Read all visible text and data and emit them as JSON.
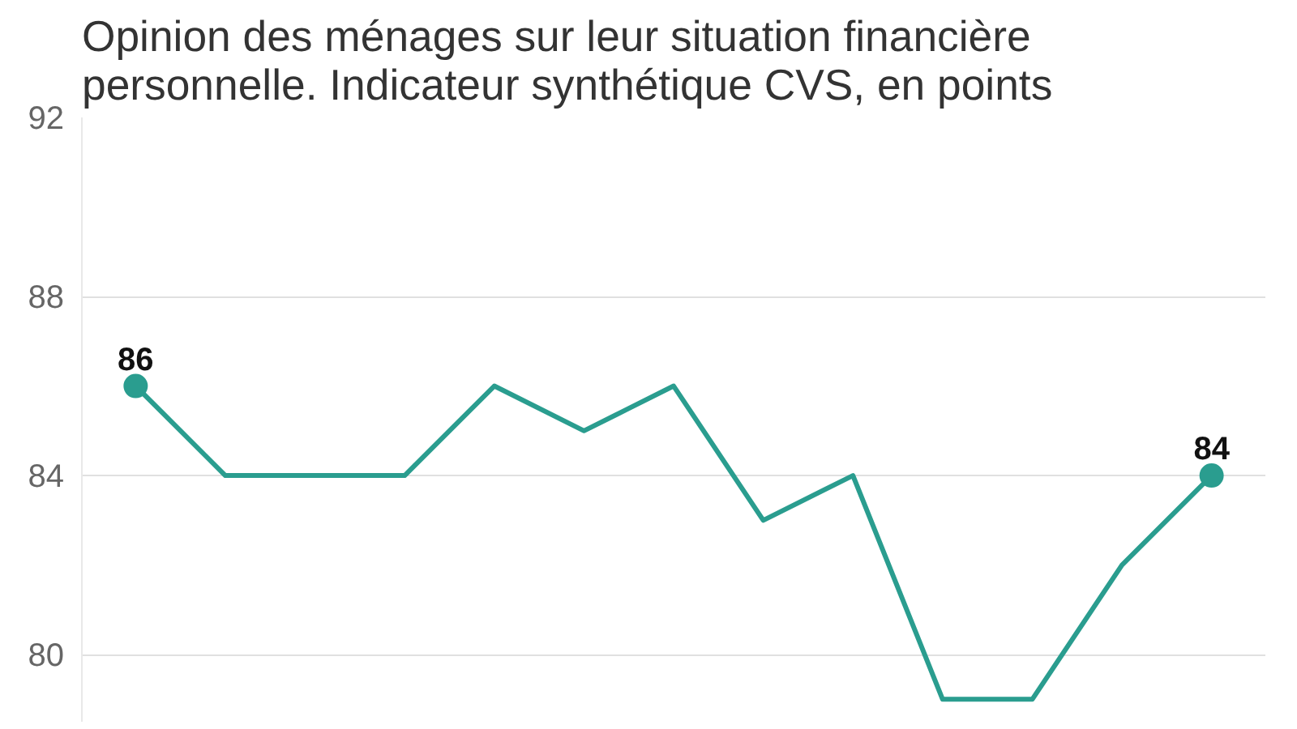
{
  "chart_data": {
    "type": "line",
    "title": "Opinion des ménages sur leur situation financière personnelle. Indicateur synthétique CVS, en points",
    "categories": [
      null,
      null,
      null,
      null,
      null,
      null,
      null,
      null,
      null,
      null,
      null,
      null,
      null
    ],
    "series": [
      {
        "color": "#2a9d8f",
        "values": [
          86,
          84,
          84,
          84,
          86,
          85,
          86,
          83,
          84,
          79,
          79,
          82,
          84
        ],
        "value_labels": [
          "86",
          null,
          null,
          null,
          null,
          null,
          null,
          null,
          null,
          null,
          null,
          null,
          "84"
        ]
      }
    ],
    "ylim": [
      78.5,
      92
    ],
    "yticks": [
      80,
      84,
      88,
      92
    ],
    "grid": "y",
    "line_style": "solid"
  }
}
